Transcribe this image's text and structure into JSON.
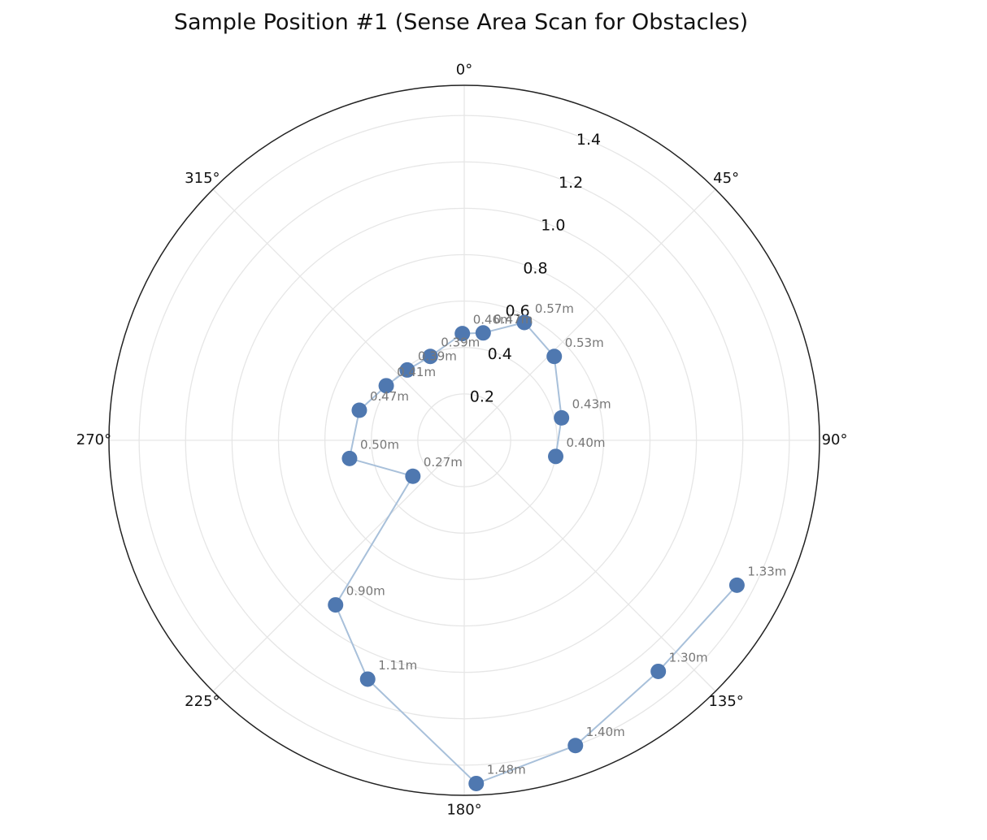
{
  "chart_data": {
    "type": "polar-scatter-line",
    "title": "Sample Position #1 (Sense Area Scan for Obstacles)",
    "angle_unit": "degrees",
    "direction": "clockwise",
    "zero_location": "top",
    "angle_ticks": [
      0,
      45,
      90,
      135,
      180,
      225,
      270,
      315
    ],
    "angle_tick_labels": [
      "0°",
      "45°",
      "90°",
      "135°",
      "180°",
      "225°",
      "270°",
      "315°"
    ],
    "radial_ticks": [
      0.2,
      0.4,
      0.6,
      0.8,
      1.0,
      1.2,
      1.4
    ],
    "radial_tick_labels": [
      "0.2",
      "0.4",
      "0.6",
      "0.8",
      "1.0",
      "1.2",
      "1.4"
    ],
    "rlim": [
      0,
      1.53
    ],
    "grid": true,
    "series": [
      {
        "label_suffix": "m",
        "points": [
          {
            "angle": 100,
            "r": 0.4,
            "label": "0.40m"
          },
          {
            "angle": 77,
            "r": 0.43,
            "label": "0.43m"
          },
          {
            "angle": 47,
            "r": 0.53,
            "label": "0.53m"
          },
          {
            "angle": 27,
            "r": 0.57,
            "label": "0.57m"
          },
          {
            "angle": 10,
            "r": 0.47,
            "label": "0.47m"
          },
          {
            "angle": -1,
            "r": 0.46,
            "label": "0.46m"
          },
          {
            "angle": -22,
            "r": 0.39,
            "label": "0.39m"
          },
          {
            "angle": -39,
            "r": 0.39,
            "label": "0.39m"
          },
          {
            "angle": -55,
            "r": 0.41,
            "label": "0.41m"
          },
          {
            "angle": -74,
            "r": 0.47,
            "label": "0.47m"
          },
          {
            "angle": -99,
            "r": 0.5,
            "label": "0.50m"
          },
          {
            "angle": -125,
            "r": 0.27,
            "label": "0.27m"
          },
          {
            "angle": -142,
            "r": 0.9,
            "label": "0.90m"
          },
          {
            "angle": -158,
            "r": 1.11,
            "label": "1.11m"
          },
          {
            "angle": 178,
            "r": 1.48,
            "label": "1.48m"
          },
          {
            "angle": 160,
            "r": 1.4,
            "label": "1.40m"
          },
          {
            "angle": 140,
            "r": 1.3,
            "label": "1.30m"
          },
          {
            "angle": 118,
            "r": 1.33,
            "label": "1.33m"
          }
        ]
      }
    ],
    "colors": {
      "marker": "#4f78b0",
      "line": "#a8c0da",
      "grid": "#e6e6e6",
      "outline": "#222222",
      "label_text": "#777777"
    }
  }
}
